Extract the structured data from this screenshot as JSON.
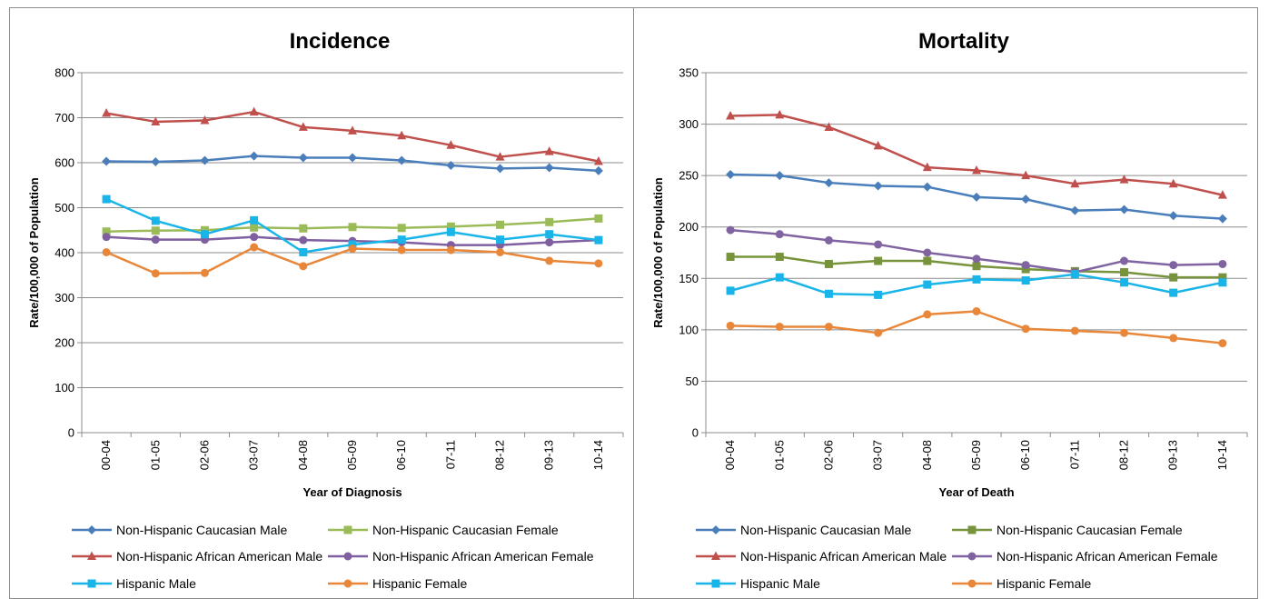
{
  "chart_data": [
    {
      "type": "line",
      "title": "Incidence",
      "xlabel": "Year of Diagnosis",
      "ylabel": "Rate/100,000 of Population",
      "ylim": [
        0,
        800
      ],
      "yticks": [
        0,
        100,
        200,
        300,
        400,
        500,
        600,
        700,
        800
      ],
      "grid": true,
      "legend_position": "bottom",
      "categories": [
        "00-04",
        "01-05",
        "02-06",
        "03-07",
        "04-08",
        "05-09",
        "06-10",
        "07-11",
        "08-12",
        "09-13",
        "10-14"
      ],
      "series": [
        {
          "name": "Non-Hispanic Caucasian Male",
          "color": "#4a7ebb",
          "marker": "diamond",
          "values": [
            603,
            602,
            605,
            615,
            611,
            611,
            605,
            594,
            587,
            589,
            582
          ]
        },
        {
          "name": "Non-Hispanic Caucasian Female",
          "color": "#9bbb59",
          "marker": "square",
          "values": [
            447,
            449,
            450,
            456,
            454,
            457,
            455,
            458,
            462,
            468,
            476
          ]
        },
        {
          "name": "Non-Hispanic African American Male",
          "color": "#c0504d",
          "marker": "triangle",
          "values": [
            710,
            691,
            694,
            713,
            679,
            671,
            660,
            639,
            613,
            625,
            603
          ]
        },
        {
          "name": "Non-Hispanic African American Female",
          "color": "#7f5fa0",
          "marker": "circle",
          "values": [
            435,
            429,
            429,
            435,
            428,
            426,
            423,
            417,
            417,
            423,
            428
          ]
        },
        {
          "name": "Hispanic Male",
          "color": "#19b5e8",
          "marker": "square",
          "values": [
            519,
            471,
            441,
            472,
            401,
            418,
            429,
            446,
            429,
            441,
            428
          ]
        },
        {
          "name": "Hispanic Female",
          "color": "#e8873a",
          "marker": "circle",
          "values": [
            401,
            354,
            355,
            412,
            370,
            409,
            406,
            406,
            401,
            382,
            376
          ]
        }
      ]
    },
    {
      "type": "line",
      "title": "Mortality",
      "xlabel": "Year of Death",
      "ylabel": "Rate/100,000 of Population",
      "ylim": [
        0,
        350
      ],
      "yticks": [
        0,
        50,
        100,
        150,
        200,
        250,
        300,
        350
      ],
      "grid": true,
      "legend_position": "bottom",
      "categories": [
        "00-04",
        "01-05",
        "02-06",
        "03-07",
        "04-08",
        "05-09",
        "06-10",
        "07-11",
        "08-12",
        "09-13",
        "10-14"
      ],
      "series": [
        {
          "name": "Non-Hispanic Caucasian Male",
          "color": "#4a7ebb",
          "marker": "diamond",
          "values": [
            251,
            250,
            243,
            240,
            239,
            229,
            227,
            216,
            217,
            211,
            208
          ]
        },
        {
          "name": "Non-Hispanic Caucasian Female",
          "color": "#77933c",
          "marker": "square",
          "values": [
            171,
            171,
            164,
            167,
            167,
            162,
            159,
            157,
            156,
            151,
            151
          ]
        },
        {
          "name": "Non-Hispanic African American Male",
          "color": "#c0504d",
          "marker": "triangle",
          "values": [
            308,
            309,
            297,
            279,
            258,
            255,
            250,
            242,
            246,
            242,
            231
          ]
        },
        {
          "name": "Non-Hispanic African American Female",
          "color": "#8064a2",
          "marker": "circle",
          "values": [
            197,
            193,
            187,
            183,
            175,
            169,
            163,
            156,
            167,
            163,
            164
          ]
        },
        {
          "name": "Hispanic Male",
          "color": "#19b5e8",
          "marker": "square",
          "values": [
            138,
            151,
            135,
            134,
            144,
            149,
            148,
            154,
            146,
            136,
            146
          ]
        },
        {
          "name": "Hispanic Female",
          "color": "#e8873a",
          "marker": "circle",
          "values": [
            104,
            103,
            103,
            97,
            115,
            118,
            101,
            99,
            97,
            92,
            87
          ]
        }
      ]
    }
  ]
}
